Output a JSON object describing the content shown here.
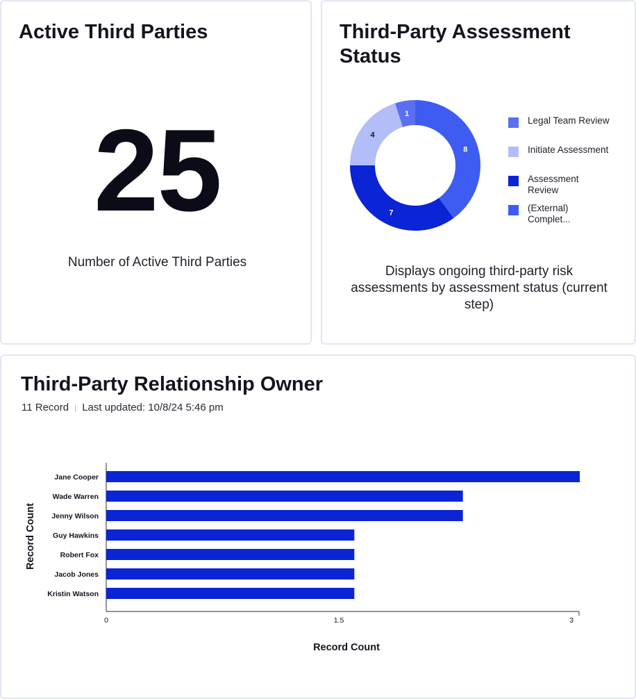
{
  "active_card": {
    "title": "Active Third Parties",
    "value": "25",
    "caption": "Number of Active Third Parties"
  },
  "status_card": {
    "title": "Third-Party Assessment Status",
    "description": "Displays ongoing third-party risk assessments by assessment status (current step)"
  },
  "owner_card": {
    "title": "Third-Party Relationship Owner",
    "record_count": "11 Record",
    "last_updated": "Last updated: 10/8/24 5:46 pm"
  },
  "colors": {
    "legal": "#5b6ff2",
    "initiate": "#b3bdf8",
    "assessment": "#0a24d6",
    "external": "#3e5cf2",
    "bar": "#0a24d6"
  },
  "chart_data": [
    {
      "type": "pie",
      "donut": true,
      "slices": [
        {
          "label": "(External) Complet...",
          "value": 8,
          "color": "#3e5cf2"
        },
        {
          "label": "Assessment Review",
          "value": 7,
          "color": "#0a24d6"
        },
        {
          "label": "Initiate Assessment",
          "value": 4,
          "color": "#b3bdf8"
        },
        {
          "label": "Legal Team Review",
          "value": 1,
          "color": "#5b6ff2"
        }
      ],
      "legend": [
        {
          "label": "Legal Team Review",
          "color": "#5b6ff2"
        },
        {
          "label": "Initiate Assessment",
          "color": "#b3bdf8"
        },
        {
          "label": "Assessment Review",
          "color": "#0a24d6"
        },
        {
          "label": "(External) Complet...",
          "color": "#3e5cf2"
        }
      ],
      "legend_position": "right"
    },
    {
      "type": "bar",
      "orientation": "horizontal",
      "categories": [
        "Jane Cooper",
        "Wade Warren",
        "Jenny Wilson",
        "Guy Hawkins",
        "Robert Fox",
        "Jacob Jones",
        "Kristin Watson"
      ],
      "values": [
        3,
        2.3,
        2.3,
        1.6,
        1.6,
        1.6,
        1.6
      ],
      "xlabel": "Record Count",
      "ylabel": "Record Count",
      "xticks": [
        "0",
        "1.5",
        "3"
      ],
      "xlim": [
        0,
        3
      ],
      "grid": false
    }
  ]
}
